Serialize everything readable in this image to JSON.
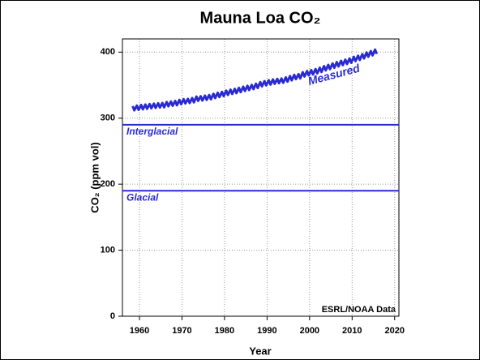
{
  "chart_data": {
    "type": "line",
    "title": "Mauna Loa CO₂",
    "xlabel": "Year",
    "ylabel": "CO₂ (ppm vol)",
    "annotation": "ESRL/NOAA Data",
    "xlim": [
      1956,
      2021
    ],
    "ylim": [
      0,
      420
    ],
    "xticks": [
      1960,
      1970,
      1980,
      1990,
      2000,
      2010,
      2020
    ],
    "yticks": [
      0,
      100,
      200,
      300,
      400
    ],
    "grid": true,
    "reference_lines": [
      {
        "label": "Interglacial",
        "value": 290,
        "color": "#2a2ad4"
      },
      {
        "label": "Glacial",
        "value": 190,
        "color": "#2a2ad4"
      }
    ],
    "series": [
      {
        "name": "Measured",
        "color": "#2a2ad4",
        "x": [
          1958.4,
          1958.8,
          1959.4,
          1959.8,
          1960.4,
          1960.8,
          1961.4,
          1961.8,
          1962.4,
          1962.8,
          1963.4,
          1963.8,
          1964.4,
          1964.8,
          1965.4,
          1965.8,
          1966.4,
          1966.8,
          1967.4,
          1967.8,
          1968.4,
          1968.8,
          1969.4,
          1969.8,
          1970.4,
          1970.8,
          1971.4,
          1971.8,
          1972.4,
          1972.8,
          1973.4,
          1973.8,
          1974.4,
          1974.8,
          1975.4,
          1975.8,
          1976.4,
          1976.8,
          1977.4,
          1977.8,
          1978.4,
          1978.8,
          1979.4,
          1979.8,
          1980.4,
          1980.8,
          1981.4,
          1981.8,
          1982.4,
          1982.8,
          1983.4,
          1983.8,
          1984.4,
          1984.8,
          1985.4,
          1985.8,
          1986.4,
          1986.8,
          1987.4,
          1987.8,
          1988.4,
          1988.8,
          1989.4,
          1989.8,
          1990.4,
          1990.8,
          1991.4,
          1991.8,
          1992.4,
          1992.8,
          1993.4,
          1993.8,
          1994.4,
          1994.8,
          1995.4,
          1995.8,
          1996.4,
          1996.8,
          1997.4,
          1997.8,
          1998.4,
          1998.8,
          1999.4,
          1999.8,
          2000.4,
          2000.8,
          2001.4,
          2001.8,
          2002.4,
          2002.8,
          2003.4,
          2003.8,
          2004.4,
          2004.8,
          2005.4,
          2005.8,
          2006.4,
          2006.8,
          2007.4,
          2007.8,
          2008.4,
          2008.8,
          2009.4,
          2009.8,
          2010.4,
          2010.8,
          2011.4,
          2011.8,
          2012.4,
          2012.8,
          2013.4,
          2013.8,
          2014.4,
          2014.8,
          2015.4,
          2015.8
        ],
        "values": [
          318.3,
          311.8,
          319.0,
          312.5,
          319.9,
          313.4,
          320.6,
          314.1,
          321.4,
          314.9,
          322.0,
          315.5,
          322.6,
          316.1,
          323.0,
          316.5,
          324.4,
          317.9,
          325.2,
          318.7,
          326.0,
          319.5,
          327.6,
          321.1,
          328.7,
          322.2,
          329.3,
          322.8,
          330.5,
          324.0,
          332.7,
          326.2,
          333.2,
          326.7,
          334.1,
          327.6,
          335.0,
          328.5,
          336.8,
          330.3,
          338.4,
          331.9,
          339.8,
          333.3,
          341.7,
          335.2,
          343.1,
          336.6,
          344.4,
          337.9,
          346.0,
          339.5,
          347.6,
          341.1,
          349.0,
          342.5,
          350.4,
          343.9,
          352.2,
          345.7,
          354.6,
          348.1,
          356.1,
          349.6,
          357.4,
          350.9,
          358.6,
          352.1,
          359.4,
          352.9,
          360.1,
          353.6,
          361.8,
          355.3,
          363.8,
          357.3,
          365.6,
          359.1,
          366.7,
          360.2,
          369.7,
          363.2,
          371.4,
          364.9,
          372.7,
          366.2,
          374.3,
          367.8,
          376.4,
          369.9,
          378.9,
          372.4,
          380.7,
          374.2,
          382.8,
          376.3,
          384.9,
          378.4,
          386.8,
          380.3,
          388.6,
          382.1,
          390.4,
          383.9,
          392.9,
          386.4,
          394.6,
          388.1,
          396.9,
          390.4,
          399.5,
          393.0,
          401.6,
          395.1,
          403.8,
          397.3
        ]
      }
    ]
  }
}
